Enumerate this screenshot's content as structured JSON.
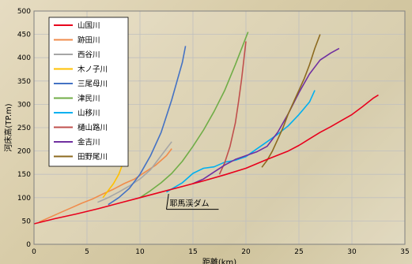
{
  "chart_data": {
    "type": "line",
    "title": "",
    "xlabel": "距離(km)",
    "ylabel": "河床高(TP.m)",
    "xlim": [
      0,
      35
    ],
    "ylim": [
      0,
      500
    ],
    "xticks": [
      0,
      5,
      10,
      15,
      20,
      25,
      30,
      35
    ],
    "yticks": [
      0,
      50,
      100,
      150,
      200,
      250,
      300,
      350,
      400,
      450,
      500
    ],
    "grid": true,
    "legend_position": "top-left",
    "annotation": {
      "text": "耶馬渓ダム",
      "x": 12.5,
      "y": 75
    },
    "series": [
      {
        "name": "山国川",
        "color": "#e8001c",
        "x": [
          0,
          2,
          4,
          6,
          8,
          10,
          12,
          14,
          16,
          18,
          20,
          22,
          24,
          25,
          26,
          27,
          28,
          29,
          30,
          31,
          32,
          32.5
        ],
        "y": [
          44,
          55,
          65,
          76,
          88,
          100,
          112,
          124,
          136,
          149,
          163,
          182,
          200,
          212,
          226,
          240,
          252,
          265,
          278,
          295,
          313,
          320
        ]
      },
      {
        "name": "跡田川",
        "color": "#f08c4c",
        "x": [
          0.5,
          1.5,
          2.5,
          3.5,
          4.5,
          5.5,
          6.5,
          7.5,
          8.5,
          9.5,
          10.5,
          11.5,
          12.5,
          13
        ],
        "y": [
          48,
          58,
          68,
          78,
          88,
          97,
          108,
          118,
          130,
          140,
          155,
          170,
          190,
          205
        ]
      },
      {
        "name": "西谷川",
        "color": "#a6a6a6",
        "x": [
          6,
          7,
          8,
          9,
          10,
          11,
          11.5,
          12,
          12.5,
          13
        ],
        "y": [
          90,
          100,
          112,
          125,
          140,
          160,
          175,
          190,
          205,
          220
        ]
      },
      {
        "name": "木ノ子川",
        "color": "#ffc000",
        "x": [
          6.5,
          7,
          7.5,
          8,
          8.3,
          8.5
        ],
        "y": [
          100,
          115,
          130,
          150,
          168,
          182
        ]
      },
      {
        "name": "三尾母川",
        "color": "#4472c4",
        "x": [
          7,
          8,
          9,
          10,
          11,
          12,
          12.5,
          13,
          13.5,
          14,
          14.3
        ],
        "y": [
          85,
          100,
          120,
          150,
          190,
          240,
          275,
          310,
          350,
          390,
          425
        ]
      },
      {
        "name": "津民川",
        "color": "#70ad47",
        "x": [
          10,
          11,
          12,
          13,
          14,
          15,
          16,
          17,
          18,
          19,
          19.6,
          20.2
        ],
        "y": [
          100,
          115,
          132,
          152,
          178,
          210,
          245,
          285,
          330,
          385,
          420,
          455
        ]
      },
      {
        "name": "山移川",
        "color": "#00b0f0",
        "x": [
          12.5,
          14,
          15,
          16,
          17,
          18,
          19,
          20,
          21,
          22,
          23,
          24,
          25,
          26,
          26.5
        ],
        "y": [
          112,
          132,
          152,
          163,
          166,
          176,
          180,
          188,
          204,
          220,
          236,
          254,
          278,
          305,
          330
        ]
      },
      {
        "name": "樋山路川",
        "color": "#c0504d",
        "x": [
          17.5,
          18,
          18.5,
          19,
          19.3,
          19.6,
          19.8,
          20
        ],
        "y": [
          150,
          175,
          210,
          260,
          305,
          355,
          395,
          435
        ]
      },
      {
        "name": "金吉川",
        "color": "#7030a0",
        "x": [
          15,
          16,
          17,
          18,
          19,
          20,
          21,
          22,
          23,
          24,
          25,
          26,
          27,
          28,
          28.8
        ],
        "y": [
          130,
          140,
          155,
          170,
          182,
          190,
          198,
          210,
          240,
          280,
          325,
          365,
          395,
          410,
          420
        ]
      },
      {
        "name": "田野尾川",
        "color": "#8c6a1f",
        "x": [
          21.5,
          22,
          22.5,
          23,
          23.5,
          24,
          24.5,
          25,
          25.5,
          26,
          26.5,
          27
        ],
        "y": [
          165,
          180,
          200,
          225,
          250,
          280,
          305,
          330,
          355,
          385,
          420,
          450
        ]
      }
    ]
  }
}
